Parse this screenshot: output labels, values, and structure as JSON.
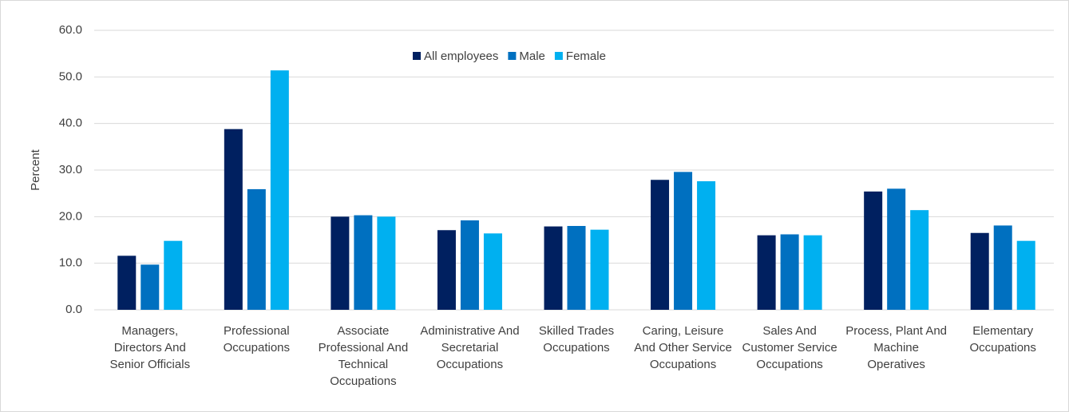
{
  "chart_data": {
    "type": "bar",
    "y_label": "Percent",
    "categories": [
      "Managers, Directors And Senior Officials",
      "Professional Occupations",
      "Associate Professional And Technical Occupations",
      "Administrative And Secretarial Occupations",
      "Skilled Trades Occupations",
      "Caring, Leisure And Other Service Occupations",
      "Sales And Customer Service Occupations",
      "Process, Plant And Machine Operatives",
      "Elementary Occupations"
    ],
    "series": [
      {
        "name": "All employees",
        "color": "#002060",
        "values": [
          11.6,
          38.8,
          20.0,
          17.1,
          17.9,
          27.9,
          16.0,
          25.4,
          16.5
        ]
      },
      {
        "name": "Male",
        "color": "#0070c0",
        "values": [
          9.7,
          25.9,
          20.3,
          19.2,
          18.0,
          29.6,
          16.2,
          26.0,
          18.1
        ]
      },
      {
        "name": "Female",
        "color": "#00b0f0",
        "values": [
          14.8,
          51.4,
          20.0,
          16.4,
          17.2,
          27.6,
          16.0,
          21.4,
          14.8
        ]
      }
    ],
    "ylim": [
      0,
      60
    ],
    "yticks": [
      {
        "value": 0,
        "label": "0.0"
      },
      {
        "value": 10,
        "label": "10.0"
      },
      {
        "value": 20,
        "label": "20.0"
      },
      {
        "value": 30,
        "label": "30.0"
      },
      {
        "value": 40,
        "label": "40.0"
      },
      {
        "value": 50,
        "label": "50.0"
      },
      {
        "value": 60,
        "label": "60.0"
      }
    ],
    "grid": true,
    "legend": "top"
  }
}
